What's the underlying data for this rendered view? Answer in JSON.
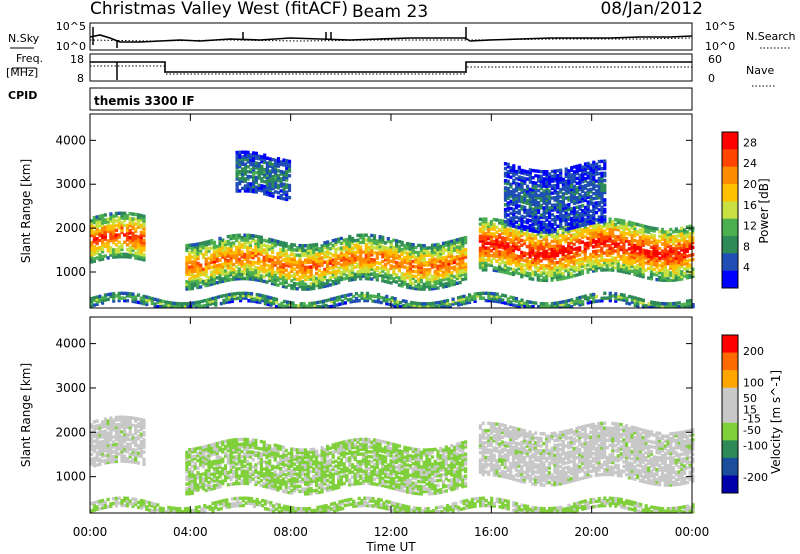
{
  "header": {
    "station": "Christmas Valley West (fitACF)",
    "beam": "Beam 23",
    "date": "08/Jan/2012"
  },
  "panels": {
    "nsky": {
      "label": "N.Sky",
      "yticks": [
        "10^5",
        "10^0"
      ],
      "right_label": "N.Search",
      "right_yticks": [
        "10^5",
        "10^0"
      ]
    },
    "freq": {
      "label_top": "Freq.",
      "label_bottom": "[MHz]",
      "yticks": [
        "18",
        "8"
      ],
      "right_label": "Nave",
      "right_yticks": [
        "60",
        "0"
      ]
    },
    "cpid": {
      "label": "CPID",
      "text": "themis 3300 IF"
    }
  },
  "colors": {
    "power_scale": [
      "#0000ff",
      "#1f4fb5",
      "#2e8b57",
      "#4caf50",
      "#c8e040",
      "#ffc000",
      "#ff8c00",
      "#ff4500",
      "#ff0000"
    ],
    "velocity_scale": [
      "#0000aa",
      "#1b4f9e",
      "#2e8b57",
      "#7fd03a",
      "#c8c8c8",
      "#c8c8c8",
      "#ffa500",
      "#ff6a00",
      "#ff0000"
    ],
    "ground_scatter": "#c8c8c8"
  },
  "chart_data": [
    {
      "type": "heatmap",
      "panel": "power",
      "ylabel": "Slant Range [km]",
      "xlabel": "Time UT",
      "x_ticks": [
        "00:00",
        "04:00",
        "08:00",
        "12:00",
        "16:00",
        "20:00",
        "00:00"
      ],
      "xlim_hours": [
        0,
        24
      ],
      "ylim_km": [
        180,
        4600
      ],
      "y_ticks": [
        1000,
        2000,
        3000,
        4000
      ],
      "colorbar": {
        "label": "Power [dB]",
        "ticks": [
          4,
          8,
          12,
          16,
          20,
          24,
          28
        ],
        "range": [
          0,
          30
        ]
      },
      "features": [
        {
          "name": "early_band",
          "t_start": 0.0,
          "t_end": 2.1,
          "range_km": [
            1200,
            2200
          ],
          "power_db": 24
        },
        {
          "name": "main_band",
          "t_start": 3.8,
          "t_end": 15.0,
          "range_km": [
            700,
            1700
          ],
          "power_db": 22
        },
        {
          "name": "late_band",
          "t_start": 15.5,
          "t_end": 24.0,
          "range_km": [
            900,
            2100
          ],
          "power_db": 26
        },
        {
          "name": "high_patch_1",
          "t_start": 5.8,
          "t_end": 8.0,
          "range_km": [
            2700,
            3600
          ],
          "power_db": 8
        },
        {
          "name": "high_patch_2",
          "t_start": 16.5,
          "t_end": 20.5,
          "range_km": [
            2000,
            3400
          ],
          "power_db": 6
        },
        {
          "name": "near_range",
          "t_start": 0.0,
          "t_end": 24.0,
          "range_km": [
            200,
            400
          ],
          "power_db": 12
        }
      ]
    },
    {
      "type": "heatmap",
      "panel": "velocity",
      "ylabel": "Slant Range [km]",
      "xlabel": "Time UT",
      "x_ticks": [
        "00:00",
        "04:00",
        "08:00",
        "12:00",
        "16:00",
        "20:00",
        "00:00"
      ],
      "xlim_hours": [
        0,
        24
      ],
      "ylim_km": [
        180,
        4600
      ],
      "y_ticks": [
        1000,
        2000,
        3000,
        4000
      ],
      "colorbar": {
        "label": "Velocity [m s^-1]",
        "ticks": [
          200,
          100,
          50,
          15,
          -15,
          -50,
          -100,
          -200
        ],
        "range": [
          -250,
          250
        ]
      },
      "features": [
        {
          "name": "ground_scatter_early",
          "t_start": 0.0,
          "t_end": 2.1,
          "range_km": [
            1200,
            2200
          ],
          "velocity": 0
        },
        {
          "name": "mixed_main",
          "t_start": 3.8,
          "t_end": 15.0,
          "range_km": [
            700,
            1700
          ],
          "velocity": -40
        },
        {
          "name": "ground_scatter_late",
          "t_start": 15.5,
          "t_end": 24.0,
          "range_km": [
            900,
            2100
          ],
          "velocity": 0
        },
        {
          "name": "near_range_flow",
          "t_start": 0.0,
          "t_end": 24.0,
          "range_km": [
            200,
            400
          ],
          "velocity": -40
        }
      ]
    }
  ]
}
